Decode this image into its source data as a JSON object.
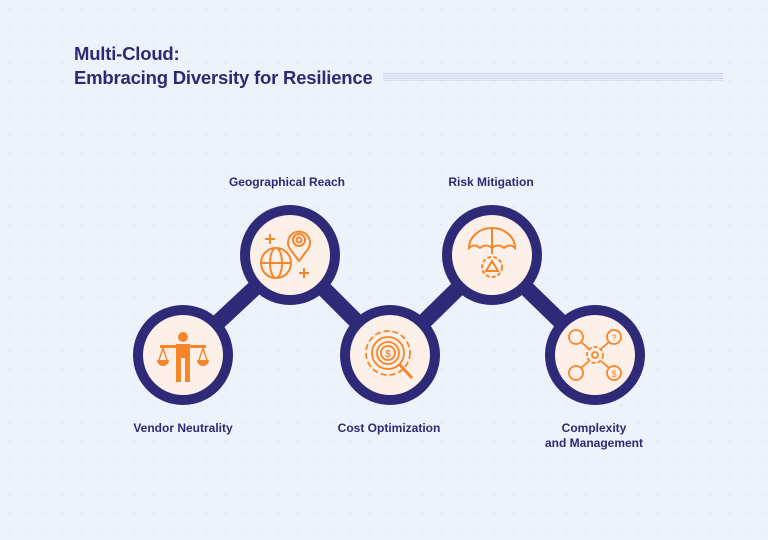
{
  "title": {
    "line1": "Multi-Cloud:",
    "line2": "Embracing Diversity for Resilience"
  },
  "colors": {
    "navy": "#2e2a78",
    "orange": "#f7862a",
    "circle_fill": "#fdf0e9",
    "background": "#eef2fb"
  },
  "nodes": [
    {
      "label": "Vendor Neutrality",
      "icon": "balance-scale-person-icon"
    },
    {
      "label": "Geographical Reach",
      "icon": "globe-location-pin-icon"
    },
    {
      "label": "Cost Optimization",
      "icon": "gear-dollar-magnifier-icon"
    },
    {
      "label": "Risk Mitigation",
      "icon": "umbrella-warning-gear-icon"
    },
    {
      "label_line1": "Complexity",
      "label_line2": "and Management",
      "icon": "gear-network-icon"
    }
  ]
}
